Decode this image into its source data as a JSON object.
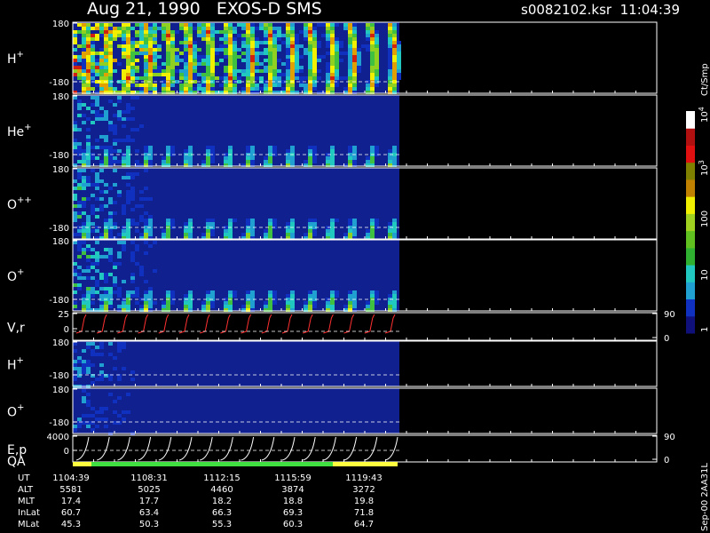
{
  "header": {
    "title": "Aug 21, 1990   EXOS-D SMS",
    "file": "s0082102.ksr  11:04:39"
  },
  "panels": [
    {
      "label": "H",
      "sup": "+",
      "ticks": [
        180,
        -180
      ]
    },
    {
      "label": "He",
      "sup": "+",
      "ticks": [
        180,
        -180
      ]
    },
    {
      "label": "O",
      "sup": "++",
      "ticks": [
        180,
        -180
      ]
    },
    {
      "label": "O",
      "sup": "+",
      "ticks": [
        180,
        -180
      ]
    },
    {
      "label": "V,r",
      "ticks": [
        25,
        0
      ],
      "right_ticks": [
        90,
        0
      ]
    },
    {
      "label": "H",
      "sup": "+",
      "ticks": [
        180,
        -180
      ]
    },
    {
      "label": "O",
      "sup": "+",
      "ticks": [
        180,
        -180
      ]
    },
    {
      "label": "E,p",
      "label2": "QA",
      "ticks": [
        4000,
        0
      ],
      "right_ticks": [
        90,
        0
      ]
    }
  ],
  "colorbar": {
    "title": "Ct/Smp",
    "ticks": [
      {
        "label": "10",
        "sup": "4"
      },
      {
        "label": "10",
        "sup": "3"
      },
      {
        "label": "100"
      },
      {
        "label": "10"
      },
      {
        "label": "1"
      }
    ]
  },
  "side_note": "Sep-00 2AA31L",
  "table": {
    "rows": [
      [
        "UT",
        "1104:39",
        "1108:31",
        "1112:15",
        "1115:59",
        "1119:43"
      ],
      [
        "ALT",
        5581,
        5025,
        4460,
        3874,
        3272
      ],
      [
        "MLT",
        17.4,
        17.7,
        18.2,
        18.8,
        19.8
      ],
      [
        "InLat",
        60.7,
        63.4,
        66.3,
        69.3,
        71.8
      ],
      [
        "MLat",
        45.3,
        50.3,
        55.3,
        60.3,
        64.7
      ]
    ]
  }
}
